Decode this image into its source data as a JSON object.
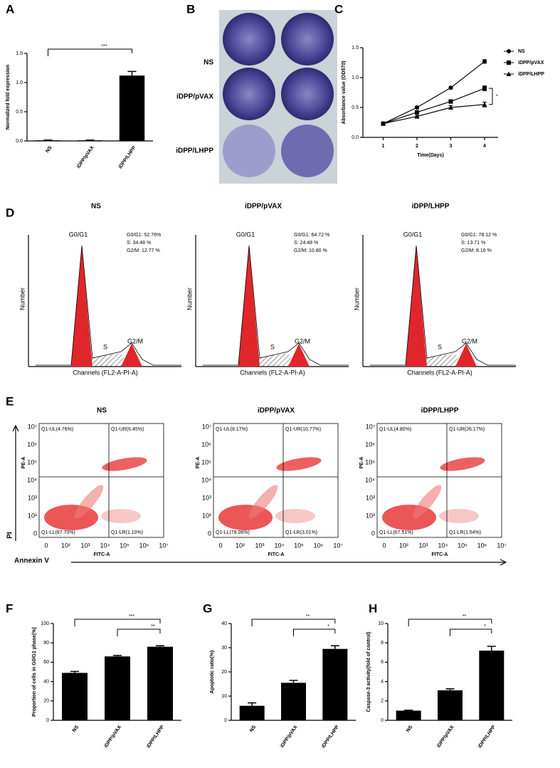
{
  "chart_data": [
    {
      "type": "bar",
      "label": "A",
      "ylabel": "Normalized fold expression",
      "categories": [
        "NS",
        "iDPP/pVAX",
        "iDPP/LHPP"
      ],
      "values": [
        0.01,
        0.01,
        1.12
      ],
      "errors": [
        0.005,
        0.005,
        0.07
      ],
      "color": "#000000",
      "ylim": [
        0,
        1.5
      ],
      "yticks": [
        {
          "value": 0,
          "label": "0.0"
        },
        0.5,
        {
          "value": 1,
          "label": "1.0"
        },
        1.5
      ],
      "annotations": [
        {
          "text": "***",
          "between": [
            "NS",
            "iDPP/LHPP"
          ]
        }
      ]
    },
    {
      "type": "line",
      "label": "C",
      "xlabel": "Time(Days)",
      "ylabel": "Absorbance value (OD570)",
      "x": [
        1,
        2,
        3,
        4
      ],
      "xlim": [
        0.4,
        4.4
      ],
      "xticks": [
        1,
        2,
        3,
        4
      ],
      "ylim": [
        0,
        1.5
      ],
      "yticks": [
        {
          "value": 0,
          "label": "0.0"
        },
        0.5,
        {
          "value": 1,
          "label": "1.0"
        },
        1.5
      ],
      "series": [
        {
          "name": "NS",
          "color": "#000000",
          "marker": "circle",
          "values": [
            0.23,
            0.5,
            0.83,
            1.27
          ],
          "errors": [
            0.01,
            0.02,
            0.02,
            0.03
          ]
        },
        {
          "name": "iDPP/pVAX",
          "color": "#000000",
          "marker": "square",
          "values": [
            0.23,
            0.42,
            0.6,
            0.82
          ],
          "errors": [
            0.01,
            0.02,
            0.03,
            0.04
          ]
        },
        {
          "name": "iDPP/LHPP",
          "color": "#000000",
          "marker": "triangle",
          "values": [
            0.23,
            0.35,
            0.5,
            0.55
          ],
          "errors": [
            0.01,
            0.02,
            0.03,
            0.04
          ]
        }
      ],
      "annotations": [
        {
          "text": "*"
        }
      ]
    },
    {
      "type": "bar",
      "label": "F",
      "ylabel": "Proportion of cells in G0/G1 phase(%)",
      "categories": [
        "NS",
        "iDPP/pVAX",
        "iDPP/LHPP"
      ],
      "values": [
        49,
        66,
        76
      ],
      "errors": [
        1.5,
        1,
        1
      ],
      "color": "#000000",
      "ylim": [
        0,
        100
      ],
      "yticks": [
        0,
        20,
        40,
        60,
        80,
        100
      ],
      "annotations": [
        {
          "text": "***",
          "between": [
            "NS",
            "iDPP/LHPP"
          ]
        },
        {
          "text": "**",
          "between": [
            "iDPP/pVAX",
            "iDPP/LHPP"
          ]
        }
      ]
    },
    {
      "type": "bar",
      "label": "G",
      "ylabel": "Apoptotic ratio(%)",
      "categories": [
        "NS",
        "iDPP/pVAX",
        "iDPP/LHPP"
      ],
      "values": [
        6,
        15.5,
        29.5
      ],
      "errors": [
        1.2,
        1,
        1.3
      ],
      "color": "#000000",
      "ylim": [
        0,
        40
      ],
      "yticks": [
        0,
        10,
        20,
        30,
        40
      ],
      "annotations": [
        {
          "text": "**",
          "between": [
            "NS",
            "iDPP/LHPP"
          ]
        },
        {
          "text": "*",
          "between": [
            "iDPP/pVAX",
            "iDPP/LHPP"
          ]
        }
      ]
    },
    {
      "type": "bar",
      "label": "H",
      "ylabel": "Caspase-3 activity(fold of control)",
      "categories": [
        "NS",
        "iDPP/pVAX",
        "iDPP/LHPP"
      ],
      "values": [
        1,
        3.1,
        7.2
      ],
      "errors": [
        0.05,
        0.15,
        0.45
      ],
      "color": "#000000",
      "ylim": [
        0,
        10
      ],
      "yticks": [
        0,
        2,
        4,
        6,
        8,
        10
      ],
      "annotations": [
        {
          "text": "**",
          "between": [
            "NS",
            "iDPP/LHPP"
          ]
        },
        {
          "text": "*",
          "between": [
            "iDPP/pVAX",
            "iDPP/LHPP"
          ]
        }
      ]
    }
  ],
  "panel_b": {
    "label": "B",
    "rows": [
      "NS",
      "iDPP/pVAX",
      "iDPP/LHPP"
    ]
  },
  "panel_d": {
    "label": "D",
    "y_label": "Number",
    "x_label": "Channels (FL2-A-PI-A)",
    "peaks": [
      "G0/G1",
      "S",
      "G2/M"
    ],
    "plots": [
      {
        "title": "NS",
        "stats": [
          "G0/G1: 52.76%",
          "S: 34.48 %",
          "G2/M: 12.77 %"
        ]
      },
      {
        "title": "iDPP/pVAX",
        "stats": [
          "G0/G1: 64.72 %",
          "S: 24.48 %",
          "G2/M: 10.80 %"
        ]
      },
      {
        "title": "iDPP/LHPP",
        "stats": [
          "G0/G1: 78.12 %",
          "S: 13.71 %",
          "G2/M: 8.16 %"
        ]
      }
    ]
  },
  "panel_e": {
    "label": "E",
    "y_axis": "PI",
    "x_axis": "Annexin V",
    "y_label": "PE-A",
    "x_label": "FITC-A",
    "ticks": [
      "0",
      "10²",
      "10³",
      "10⁴",
      "10⁵",
      "10⁶",
      "10⁷"
    ],
    "plots": [
      {
        "title": "NS",
        "quadrants": [
          "Q1-UL(4.76%)",
          "Q1-UR(6.45%)",
          "Q1-LL(87.70%)",
          "Q1-LR(1.10%)"
        ]
      },
      {
        "title": "iDPP/pVAX",
        "quadrants": [
          "Q1-UL(8.17%)",
          "Q1-UR(10.77%)",
          "Q1-LL(78.06%)",
          "Q1-LR(3.01%)"
        ]
      },
      {
        "title": "iDPP/LHPP",
        "quadrants": [
          "Q1-UL(4.80%)",
          "Q1-UR(26.17%)",
          "Q1-LL(67.51%)",
          "Q1-LR(1.54%)"
        ]
      }
    ]
  }
}
